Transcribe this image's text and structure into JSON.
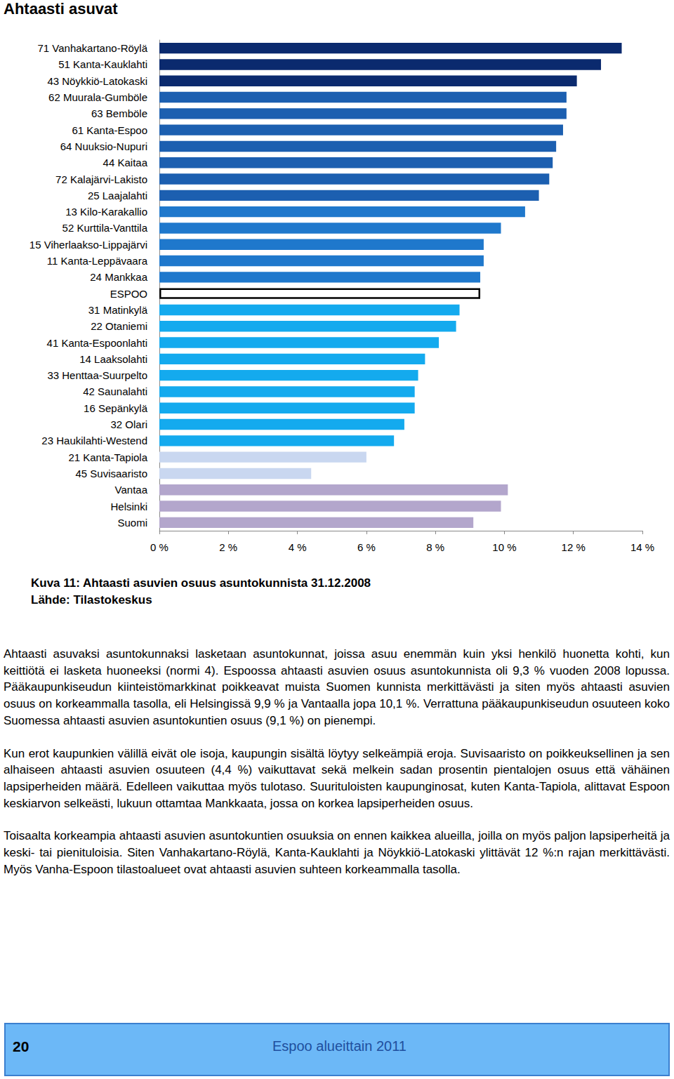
{
  "header": {
    "title": "Ahtaasti asuvat"
  },
  "chart_data": {
    "type": "bar",
    "orientation": "horizontal",
    "categories": [
      "71 Vanhakartano-Röylä",
      "51 Kanta-Kauklahti",
      "43 Nöykkiö-Latokaski",
      "62 Muurala-Gumböle",
      "63 Bemböle",
      "61 Kanta-Espoo",
      "64 Nuuksio-Nupuri",
      "44 Kaitaa",
      "72 Kalajärvi-Lakisto",
      "25 Laajalahti",
      "13 Kilo-Karakallio",
      "52 Kurttila-Vanttila",
      "15 Viherlaakso-Lippajärvi",
      "11 Kanta-Leppävaara",
      "24 Mankkaa",
      "ESPOO",
      "31 Matinkylä",
      "22 Otaniemi",
      "41 Kanta-Espoonlahti",
      "14 Laaksolahti",
      "33 Henttaa-Suurpelto",
      "42 Saunalahti",
      "16 Sepänkylä",
      "32 Olari",
      "23 Haukilahti-Westend",
      "21 Kanta-Tapiola",
      "45 Suvisaaristo",
      "Vantaa",
      "Helsinki",
      "Suomi"
    ],
    "values": [
      13.4,
      12.8,
      12.1,
      11.8,
      11.8,
      11.7,
      11.5,
      11.4,
      11.3,
      11.0,
      10.6,
      9.9,
      9.4,
      9.4,
      9.3,
      9.3,
      8.7,
      8.6,
      8.1,
      7.7,
      7.5,
      7.4,
      7.4,
      7.1,
      6.8,
      6.0,
      4.4,
      10.1,
      9.9,
      9.1
    ],
    "colors": [
      "#0b2a6e",
      "#0b2a6e",
      "#0b2a6e",
      "#1c5fb0",
      "#1c5fb0",
      "#1c5fb0",
      "#1c5fb0",
      "#1c5fb0",
      "#1c5fb0",
      "#1c5fb0",
      "#1f78cc",
      "#1f78cc",
      "#1f78cc",
      "#1f78cc",
      "#1f78cc",
      "#ffffff",
      "#14aaee",
      "#14aaee",
      "#14aaee",
      "#14aaee",
      "#14aaee",
      "#14aaee",
      "#14aaee",
      "#14aaee",
      "#14aaee",
      "#c9d7f0",
      "#c9d7f0",
      "#b3a6cc",
      "#b3a6cc",
      "#b3a6cc"
    ],
    "xlim": [
      0,
      14
    ],
    "xticks": [
      {
        "value": 0,
        "label": "0 %"
      },
      {
        "value": 2,
        "label": "2 %"
      },
      {
        "value": 4,
        "label": "4 %"
      },
      {
        "value": 6,
        "label": "6 %"
      },
      {
        "value": 8,
        "label": "8 %"
      },
      {
        "value": 10,
        "label": "10 %"
      },
      {
        "value": 12,
        "label": "12 %"
      },
      {
        "value": 14,
        "label": "14 %"
      }
    ],
    "grid": false
  },
  "caption": [
    "Kuva 11: Ahtaasti asuvien osuus asuntokunnista 31.12.2008",
    "Lähde: Tilastokeskus"
  ],
  "paragraphs": [
    "Ahtaasti asuvaksi asuntokunnaksi lasketaan asuntokunnat, joissa asuu enemmän kuin yksi henkilö huonetta kohti, kun keittiötä ei lasketa huoneeksi (normi 4). Espoossa ahtaasti asuvien osuus asuntokunnista oli 9,3 % vuoden 2008 lopussa. Pääkaupunkiseudun kiinteistömarkkinat poikkeavat muista Suomen kunnista merkittävästi ja siten myös ahtaasti asuvien osuus on korkeammalla tasolla, eli Helsingissä 9,9 % ja Vantaalla jopa 10,1 %. Verrattuna pääkaupunkiseudun osuuteen koko Suomessa ahtaasti asuvien asuntokuntien osuus (9,1 %) on pienempi.",
    "Kun erot kaupunkien välillä eivät ole isoja, kaupungin sisältä löytyy selkeämpiä eroja. Suvisaaristo on poikkeuksellinen ja sen alhaiseen ahtaasti asuvien osuuteen (4,4 %) vaikuttavat sekä melkein sadan prosentin pientalojen osuus että vähäinen lapsiperheiden määrä. Edelleen vaikuttaa myös tulotaso. Suurituloisten kaupunginosat, kuten Kanta-Tapiola, alittavat Espoon keskiarvon selkeästi, lukuun ottamtaa Mankkaata, jossa on korkea lapsiperheiden osuus.",
    "Toisaalta korkeampia ahtaasti asuvien asuntokuntien osuuksia on ennen kaikkea alueilla, joilla on myös paljon lapsiperheitä ja keski- tai pienituloisia. Siten Vanhakartano-Röylä, Kanta-Kauklahti ja Nöykkiö-Latokaski ylittävät 12 %:n rajan merkittävästi. Myös Vanha-Espoon tilastoalueet ovat ahtaasti asuvien suhteen korkeammalla tasolla."
  ],
  "footer": {
    "page": "20",
    "text": "Espoo alueittain 2011"
  }
}
